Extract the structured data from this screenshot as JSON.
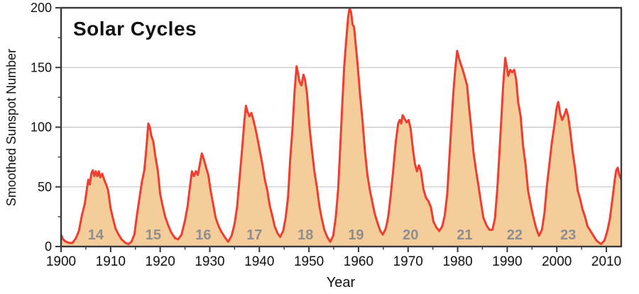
{
  "colors": {
    "line": "#ee3d31",
    "fill": "#f5cd9b",
    "grid": "#bdbdbd",
    "axis": "#3a3a3a",
    "tick_text": "#111111",
    "cycle_label": "#8e8e8e",
    "background": "#ffffff"
  },
  "chart_data": {
    "type": "area",
    "title": "Solar Cycles",
    "xlabel": "Year",
    "ylabel": "Smoothed Sunspot Number",
    "xlim": [
      1900,
      2013
    ],
    "ylim": [
      0,
      200
    ],
    "x_major_ticks": [
      1900,
      1910,
      1920,
      1930,
      1940,
      1950,
      1960,
      1970,
      1980,
      1990,
      2000,
      2010
    ],
    "x_minor_ticks": [
      1905,
      1915,
      1925,
      1935,
      1945,
      1955,
      1965,
      1975,
      1985,
      1995,
      2005
    ],
    "y_major_ticks": [
      0,
      50,
      100,
      150,
      200
    ],
    "y_minor_ticks": [
      25,
      75,
      125,
      175
    ],
    "y_gridlines": [
      50,
      100,
      150
    ],
    "grid": "horizontal-only",
    "legend": "none",
    "cycle_labels": [
      {
        "label": "14",
        "year": 1907.0,
        "value": 10
      },
      {
        "label": "15",
        "year": 1918.6,
        "value": 10
      },
      {
        "label": "16",
        "year": 1928.7,
        "value": 10
      },
      {
        "label": "17",
        "year": 1939.0,
        "value": 10
      },
      {
        "label": "18",
        "year": 1949.3,
        "value": 10
      },
      {
        "label": "19",
        "year": 1959.5,
        "value": 10
      },
      {
        "label": "20",
        "year": 1970.5,
        "value": 10
      },
      {
        "label": "21",
        "year": 1981.4,
        "value": 10
      },
      {
        "label": "22",
        "year": 1991.5,
        "value": 10
      },
      {
        "label": "23",
        "year": 2002.3,
        "value": 10
      }
    ],
    "series": [
      {
        "name": "smoothed-sunspot-number",
        "points": [
          [
            1900.0,
            10
          ],
          [
            1900.4,
            6
          ],
          [
            1901,
            4
          ],
          [
            1901.7,
            3
          ],
          [
            1902.3,
            3
          ],
          [
            1903,
            7
          ],
          [
            1903.6,
            13
          ],
          [
            1904.2,
            26
          ],
          [
            1904.8,
            36
          ],
          [
            1905.2,
            48
          ],
          [
            1905.5,
            56
          ],
          [
            1905.8,
            52
          ],
          [
            1906.1,
            61
          ],
          [
            1906.4,
            64
          ],
          [
            1906.7,
            59
          ],
          [
            1907,
            63
          ],
          [
            1907.3,
            59
          ],
          [
            1907.6,
            63
          ],
          [
            1907.9,
            58
          ],
          [
            1908.3,
            61
          ],
          [
            1908.7,
            56
          ],
          [
            1909.1,
            52
          ],
          [
            1909.5,
            47
          ],
          [
            1910,
            32
          ],
          [
            1910.5,
            23
          ],
          [
            1911,
            15
          ],
          [
            1911.6,
            10
          ],
          [
            1912.2,
            6
          ],
          [
            1913,
            3
          ],
          [
            1913.6,
            2
          ],
          [
            1914.2,
            4
          ],
          [
            1914.8,
            10
          ],
          [
            1915.3,
            26
          ],
          [
            1915.8,
            40
          ],
          [
            1916.3,
            54
          ],
          [
            1916.8,
            64
          ],
          [
            1917.2,
            82
          ],
          [
            1917.6,
            103
          ],
          [
            1917.9,
            100
          ],
          [
            1918.2,
            93
          ],
          [
            1918.6,
            88
          ],
          [
            1919,
            76
          ],
          [
            1919.5,
            64
          ],
          [
            1920,
            44
          ],
          [
            1920.5,
            34
          ],
          [
            1921,
            25
          ],
          [
            1921.6,
            18
          ],
          [
            1922.2,
            12
          ],
          [
            1923,
            7
          ],
          [
            1923.6,
            6
          ],
          [
            1924.3,
            10
          ],
          [
            1925,
            22
          ],
          [
            1925.5,
            33
          ],
          [
            1926,
            50
          ],
          [
            1926.4,
            63
          ],
          [
            1926.8,
            59
          ],
          [
            1927.2,
            63
          ],
          [
            1927.6,
            60
          ],
          [
            1928,
            69
          ],
          [
            1928.4,
            78
          ],
          [
            1928.8,
            73
          ],
          [
            1929.2,
            67
          ],
          [
            1929.7,
            60
          ],
          [
            1930.2,
            46
          ],
          [
            1930.7,
            35
          ],
          [
            1931.2,
            24
          ],
          [
            1931.8,
            17
          ],
          [
            1932.4,
            12
          ],
          [
            1933,
            8
          ],
          [
            1933.7,
            4
          ],
          [
            1934.4,
            9
          ],
          [
            1935,
            19
          ],
          [
            1935.5,
            33
          ],
          [
            1936,
            57
          ],
          [
            1936.5,
            81
          ],
          [
            1937,
            106
          ],
          [
            1937.3,
            118
          ],
          [
            1937.6,
            113
          ],
          [
            1938,
            109
          ],
          [
            1938.4,
            112
          ],
          [
            1938.8,
            106
          ],
          [
            1939.2,
            99
          ],
          [
            1939.6,
            91
          ],
          [
            1940.1,
            80
          ],
          [
            1940.6,
            69
          ],
          [
            1941.1,
            56
          ],
          [
            1941.6,
            47
          ],
          [
            1942.1,
            34
          ],
          [
            1942.6,
            26
          ],
          [
            1943.1,
            17
          ],
          [
            1943.7,
            11
          ],
          [
            1944.2,
            8
          ],
          [
            1944.8,
            13
          ],
          [
            1945.3,
            24
          ],
          [
            1945.8,
            42
          ],
          [
            1946.2,
            72
          ],
          [
            1946.7,
            100
          ],
          [
            1947.1,
            130
          ],
          [
            1947.5,
            151
          ],
          [
            1947.8,
            145
          ],
          [
            1948.1,
            138
          ],
          [
            1948.5,
            135
          ],
          [
            1948.9,
            144
          ],
          [
            1949.2,
            140
          ],
          [
            1949.6,
            129
          ],
          [
            1950.1,
            101
          ],
          [
            1950.6,
            81
          ],
          [
            1951.1,
            63
          ],
          [
            1951.6,
            50
          ],
          [
            1952.1,
            34
          ],
          [
            1952.6,
            23
          ],
          [
            1953.1,
            14
          ],
          [
            1953.7,
            8
          ],
          [
            1954.3,
            4
          ],
          [
            1954.9,
            9
          ],
          [
            1955.4,
            24
          ],
          [
            1955.9,
            48
          ],
          [
            1956.3,
            82
          ],
          [
            1956.7,
            117
          ],
          [
            1957.1,
            150
          ],
          [
            1957.5,
            172
          ],
          [
            1957.9,
            192
          ],
          [
            1958.2,
            200
          ],
          [
            1958.5,
            196
          ],
          [
            1958.8,
            186
          ],
          [
            1959.1,
            184
          ],
          [
            1959.4,
            171
          ],
          [
            1959.8,
            154
          ],
          [
            1960.3,
            128
          ],
          [
            1960.8,
            106
          ],
          [
            1961.3,
            80
          ],
          [
            1961.8,
            60
          ],
          [
            1962.3,
            47
          ],
          [
            1962.8,
            37
          ],
          [
            1963.3,
            27
          ],
          [
            1963.9,
            19
          ],
          [
            1964.4,
            13
          ],
          [
            1964.9,
            10
          ],
          [
            1965.5,
            15
          ],
          [
            1966,
            25
          ],
          [
            1966.5,
            43
          ],
          [
            1967,
            64
          ],
          [
            1967.5,
            87
          ],
          [
            1968,
            103
          ],
          [
            1968.3,
            106
          ],
          [
            1968.6,
            103
          ],
          [
            1968.9,
            110
          ],
          [
            1969.3,
            107
          ],
          [
            1969.7,
            104
          ],
          [
            1970.1,
            106
          ],
          [
            1970.5,
            99
          ],
          [
            1971,
            81
          ],
          [
            1971.4,
            69
          ],
          [
            1971.8,
            63
          ],
          [
            1972.2,
            68
          ],
          [
            1972.6,
            63
          ],
          [
            1973.1,
            48
          ],
          [
            1973.6,
            41
          ],
          [
            1974.1,
            38
          ],
          [
            1974.6,
            33
          ],
          [
            1975.1,
            21
          ],
          [
            1975.7,
            16
          ],
          [
            1976.3,
            13
          ],
          [
            1976.9,
            17
          ],
          [
            1977.4,
            26
          ],
          [
            1977.9,
            44
          ],
          [
            1978.3,
            72
          ],
          [
            1978.7,
            100
          ],
          [
            1979.1,
            127
          ],
          [
            1979.5,
            148
          ],
          [
            1979.9,
            164
          ],
          [
            1980.3,
            157
          ],
          [
            1980.7,
            152
          ],
          [
            1981.1,
            147
          ],
          [
            1981.5,
            141
          ],
          [
            1981.9,
            135
          ],
          [
            1982.3,
            117
          ],
          [
            1982.7,
            101
          ],
          [
            1983.2,
            79
          ],
          [
            1983.7,
            64
          ],
          [
            1984.2,
            51
          ],
          [
            1984.7,
            37
          ],
          [
            1985.2,
            24
          ],
          [
            1985.8,
            18
          ],
          [
            1986.4,
            14
          ],
          [
            1987,
            14
          ],
          [
            1987.5,
            23
          ],
          [
            1988,
            48
          ],
          [
            1988.4,
            76
          ],
          [
            1988.8,
            106
          ],
          [
            1989.2,
            136
          ],
          [
            1989.6,
            158
          ],
          [
            1989.9,
            151
          ],
          [
            1990.2,
            143
          ],
          [
            1990.6,
            148
          ],
          [
            1991,
            146
          ],
          [
            1991.4,
            148
          ],
          [
            1991.8,
            140
          ],
          [
            1992.2,
            121
          ],
          [
            1992.7,
            109
          ],
          [
            1993.2,
            84
          ],
          [
            1993.7,
            69
          ],
          [
            1994.2,
            47
          ],
          [
            1994.7,
            36
          ],
          [
            1995.2,
            26
          ],
          [
            1995.8,
            16
          ],
          [
            1996.4,
            9
          ],
          [
            1997,
            14
          ],
          [
            1997.5,
            28
          ],
          [
            1998,
            51
          ],
          [
            1998.5,
            69
          ],
          [
            1999,
            87
          ],
          [
            1999.5,
            101
          ],
          [
            2000,
            117
          ],
          [
            2000.3,
            121
          ],
          [
            2000.7,
            111
          ],
          [
            2001.1,
            106
          ],
          [
            2001.5,
            110
          ],
          [
            2001.9,
            115
          ],
          [
            2002.3,
            109
          ],
          [
            2002.7,
            97
          ],
          [
            2003.2,
            79
          ],
          [
            2003.7,
            65
          ],
          [
            2004.2,
            47
          ],
          [
            2004.7,
            40
          ],
          [
            2005.2,
            31
          ],
          [
            2005.7,
            25
          ],
          [
            2006.2,
            17
          ],
          [
            2006.8,
            13
          ],
          [
            2007.4,
            9
          ],
          [
            2008,
            5
          ],
          [
            2008.9,
            2
          ],
          [
            2009.6,
            5
          ],
          [
            2010.2,
            13
          ],
          [
            2010.7,
            23
          ],
          [
            2011.2,
            39
          ],
          [
            2011.7,
            56
          ],
          [
            2012,
            64
          ],
          [
            2012.3,
            66
          ],
          [
            2012.6,
            60
          ],
          [
            2012.9,
            57
          ],
          [
            2013,
            60
          ]
        ]
      }
    ]
  }
}
